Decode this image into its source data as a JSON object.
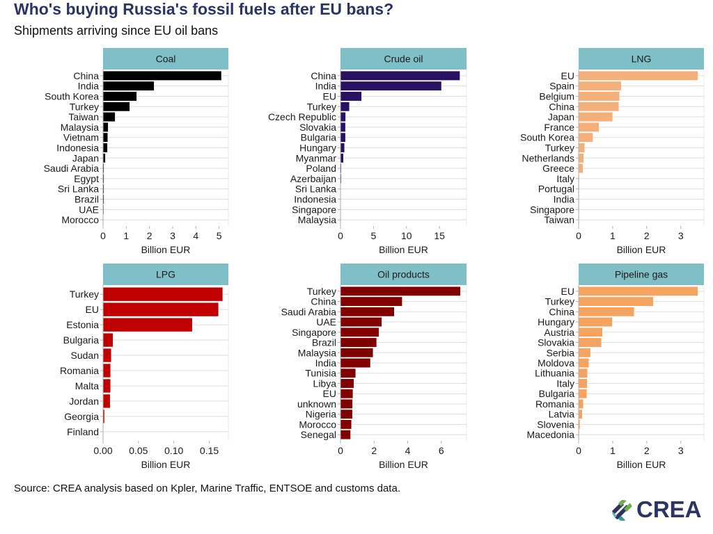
{
  "header": {
    "title": "Who's buying Russia's fossil fuels after EU bans?",
    "subtitle": "Shipments arriving since EU oil bans"
  },
  "footer": {
    "source": "Source: CREA analysis based on Kpler, Marine Traffic, ENTSOE and customs data.",
    "logo_text": "CREA"
  },
  "colors": {
    "strip": "#7fbfc7",
    "grid": "#dedede",
    "axis": "#b3b3b3"
  },
  "chart_data": [
    {
      "type": "bar",
      "orientation": "horizontal",
      "title": "Coal",
      "xlabel": "Billion EUR",
      "color": "#000000",
      "xlim": [
        0,
        5.4
      ],
      "ticks": [
        0,
        1,
        2,
        3,
        4,
        5
      ],
      "tick_labels": [
        "0",
        "1",
        "2",
        "3",
        "4",
        "5"
      ],
      "categories": [
        "China",
        "India",
        "South Korea",
        "Turkey",
        "Taiwan",
        "Malaysia",
        "Vietnam",
        "Indonesia",
        "Japan",
        "Saudi Arabia",
        "Egypt",
        "Sri Lanka",
        "Brazil",
        "UAE",
        "Morocco"
      ],
      "values": [
        5.1,
        2.2,
        1.45,
        1.15,
        0.52,
        0.22,
        0.2,
        0.19,
        0.1,
        0.04,
        0.04,
        0.04,
        0.04,
        0.03,
        0.02
      ]
    },
    {
      "type": "bar",
      "orientation": "horizontal",
      "title": "Crude oil",
      "xlabel": "Billion EUR",
      "color": "#2a1060",
      "xlim": [
        0,
        19.1
      ],
      "ticks": [
        0,
        5,
        10,
        15
      ],
      "tick_labels": [
        "0",
        "5",
        "10",
        "15"
      ],
      "categories": [
        "China",
        "India",
        "EU",
        "Turkey",
        "Czech Republic",
        "Slovakia",
        "Bulgaria",
        "Hungary",
        "Myanmar",
        "Poland",
        "Azerbaijan",
        "Sri Lanka",
        "Indonesia",
        "Singapore",
        "Malaysia"
      ],
      "values": [
        18.1,
        15.3,
        3.2,
        1.35,
        0.78,
        0.75,
        0.75,
        0.6,
        0.45,
        0.12,
        0.12,
        0.01,
        0.01,
        0.01,
        0.01
      ]
    },
    {
      "type": "bar",
      "orientation": "horizontal",
      "title": "LNG",
      "xlabel": "Billion EUR",
      "color": "#f4b07a",
      "xlim": [
        0,
        3.68
      ],
      "ticks": [
        0,
        1,
        2,
        3
      ],
      "tick_labels": [
        "0",
        "1",
        "2",
        "3"
      ],
      "categories": [
        "EU",
        "Spain",
        "Belgium",
        "China",
        "Japan",
        "France",
        "South Korea",
        "Turkey",
        "Netherlands",
        "Greece",
        "Italy",
        "Portugal",
        "India",
        "Singapore",
        "Taiwan"
      ],
      "values": [
        3.5,
        1.25,
        1.2,
        1.18,
        1.0,
        0.6,
        0.42,
        0.18,
        0.15,
        0.13,
        0.02,
        0.02,
        0.02,
        0.02,
        0.02
      ]
    },
    {
      "type": "bar",
      "orientation": "horizontal",
      "title": "LPG",
      "xlabel": "Billion EUR",
      "color": "#c00000",
      "xlim": [
        0,
        0.177
      ],
      "ticks": [
        0,
        0.05,
        0.1,
        0.15
      ],
      "tick_labels": [
        "0.00",
        "0.05",
        "0.10",
        "0.15"
      ],
      "categories": [
        "Turkey",
        "EU",
        "Estonia",
        "Bulgaria",
        "Sudan",
        "Romania",
        "Malta",
        "Jordan",
        "Georgia",
        "Finland"
      ],
      "values": [
        0.169,
        0.163,
        0.126,
        0.014,
        0.0115,
        0.0105,
        0.0105,
        0.01,
        0.002,
        0.0002
      ]
    },
    {
      "type": "bar",
      "orientation": "horizontal",
      "title": "Oil products",
      "xlabel": "Billion EUR",
      "color": "#800000",
      "xlim": [
        0,
        7.5
      ],
      "ticks": [
        0,
        2,
        4,
        6
      ],
      "tick_labels": [
        "0",
        "2",
        "4",
        "6"
      ],
      "categories": [
        "Turkey",
        "China",
        "Saudi Arabia",
        "UAE",
        "Singapore",
        "Brazil",
        "Malaysia",
        "India",
        "Tunisia",
        "Libya",
        "EU",
        "unknown",
        "Nigeria",
        "Morocco",
        "Senegal"
      ],
      "values": [
        7.14,
        3.67,
        3.2,
        2.46,
        2.29,
        2.15,
        1.94,
        1.78,
        0.9,
        0.8,
        0.74,
        0.72,
        0.71,
        0.65,
        0.6
      ]
    },
    {
      "type": "bar",
      "orientation": "horizontal",
      "title": "Pipeline gas",
      "xlabel": "Billion EUR",
      "color": "#f4a460",
      "xlim": [
        0,
        3.68
      ],
      "ticks": [
        0,
        1,
        2,
        3
      ],
      "tick_labels": [
        "0",
        "1",
        "2",
        "3"
      ],
      "categories": [
        "EU",
        "Turkey",
        "China",
        "Hungary",
        "Austria",
        "Slovakia",
        "Serbia",
        "Moldova",
        "Lithuania",
        "Italy",
        "Bulgaria",
        "Romania",
        "Latvia",
        "Slovenia",
        "Macedonia"
      ],
      "values": [
        3.5,
        2.19,
        1.63,
        0.99,
        0.7,
        0.67,
        0.35,
        0.3,
        0.26,
        0.25,
        0.24,
        0.14,
        0.11,
        0.04,
        0.02
      ]
    }
  ]
}
